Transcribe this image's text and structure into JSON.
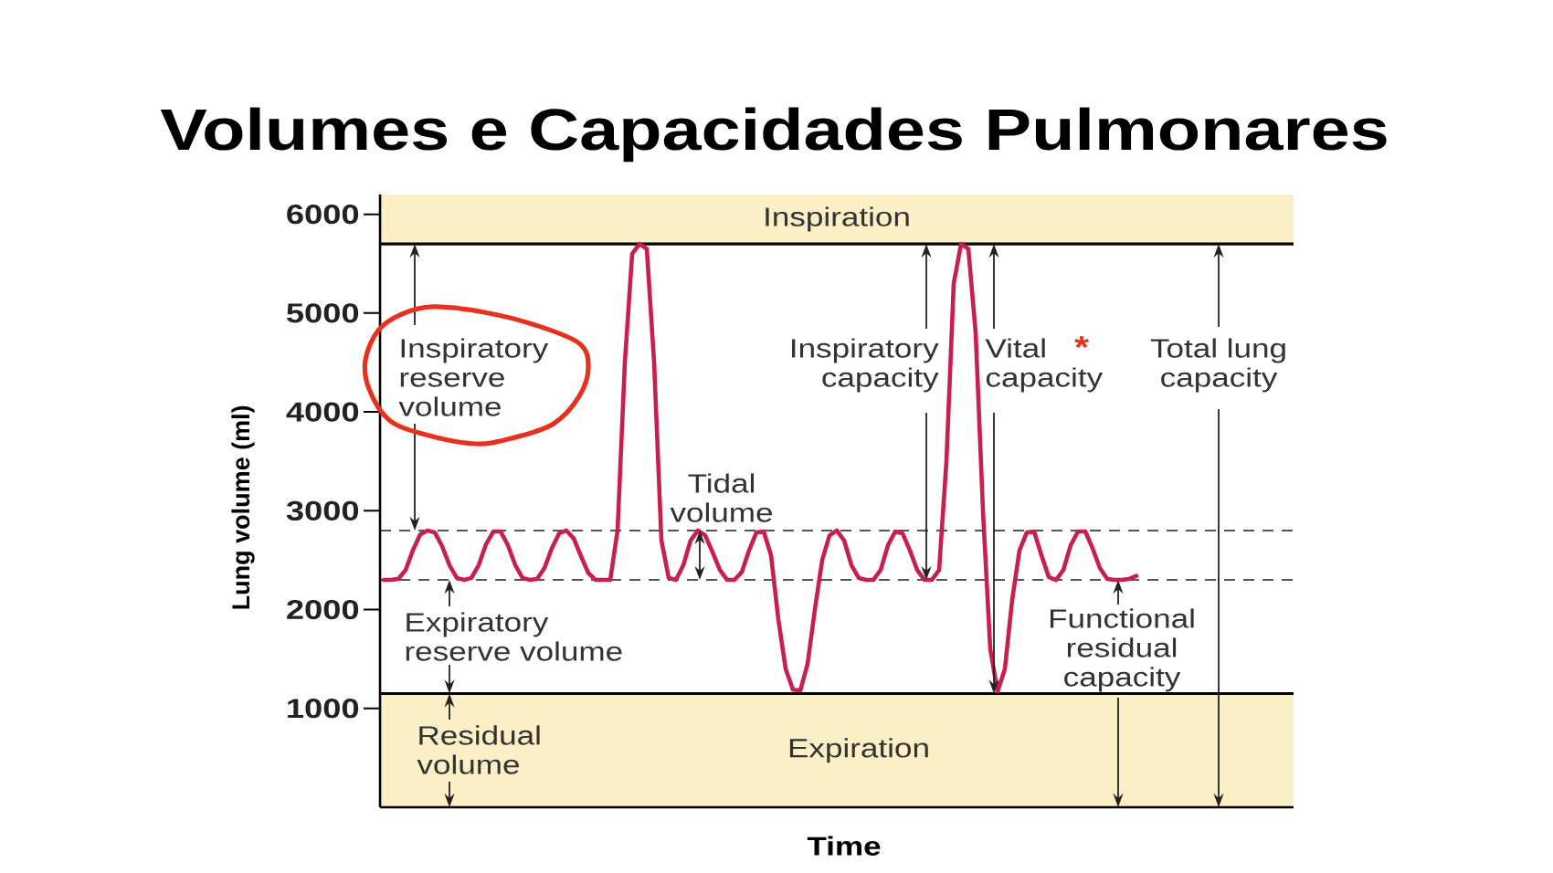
{
  "chart_data": {
    "type": "line",
    "title": "Volumes e Capacidades Pulmonares",
    "xlabel": "Time",
    "ylabel": "Lung volume (ml)",
    "categories": [
      null,
      null,
      null,
      null,
      null,
      null,
      null,
      null,
      null,
      null,
      null,
      null,
      null,
      null,
      null,
      null,
      null,
      null,
      null,
      null,
      null,
      null,
      null,
      null,
      null,
      null,
      null,
      null,
      null,
      null,
      null,
      null,
      null,
      null,
      null,
      null,
      null,
      null,
      null,
      null,
      null,
      null,
      null,
      null,
      null,
      null,
      null,
      null,
      null,
      null,
      null,
      null,
      null,
      null,
      null,
      null,
      null,
      null,
      null,
      null,
      null,
      null,
      null,
      null,
      null,
      null,
      null,
      null,
      null,
      null,
      null,
      null,
      null,
      null,
      null,
      null,
      null,
      null,
      null,
      null,
      null,
      null,
      null,
      null,
      null,
      null,
      null,
      null,
      null,
      null,
      null,
      null,
      null,
      null,
      null,
      null,
      null,
      null,
      null,
      null,
      null,
      null,
      null,
      null
    ],
    "values": [
      2300,
      2300,
      2310,
      2400,
      2600,
      2760,
      2800,
      2780,
      2640,
      2450,
      2320,
      2300,
      2320,
      2450,
      2660,
      2790,
      2790,
      2650,
      2450,
      2320,
      2300,
      2310,
      2420,
      2620,
      2770,
      2800,
      2720,
      2540,
      2370,
      2300,
      2300,
      2300,
      2800,
      4500,
      5600,
      5700,
      5650,
      4500,
      2700,
      2320,
      2300,
      2450,
      2700,
      2800,
      2750,
      2580,
      2400,
      2300,
      2300,
      2380,
      2600,
      2780,
      2790,
      2550,
      1900,
      1400,
      1190,
      1180,
      1450,
      2000,
      2500,
      2750,
      2800,
      2700,
      2450,
      2320,
      2300,
      2300,
      2400,
      2650,
      2790,
      2770,
      2600,
      2400,
      2300,
      2300,
      2400,
      3500,
      5300,
      5700,
      5650,
      4800,
      3000,
      1600,
      1170,
      1400,
      2100,
      2600,
      2780,
      2790,
      2550,
      2330,
      2300,
      2400,
      2650,
      2790,
      2790,
      2620,
      2420,
      2310,
      2300,
      2300,
      2310,
      2340
    ],
    "color": "#c71f4e",
    "ylim": [
      0,
      6200
    ],
    "yticks": [
      1000,
      2000,
      3000,
      4000,
      5000,
      6000
    ],
    "tick_labels": "y",
    "ref_lines": [
      {
        "axis": "y",
        "value": 2800,
        "color": "#555555",
        "line_style": "dashed"
      },
      {
        "axis": "y",
        "value": 2300,
        "color": "#555555",
        "line_style": "dashed"
      },
      {
        "axis": "y",
        "value": 5700,
        "color": "#000000",
        "line_style": "solid"
      },
      {
        "axis": "y",
        "value": 1150,
        "color": "#000000",
        "line_style": "solid"
      }
    ],
    "bands": [
      {
        "axis": "y",
        "from": 5700,
        "to": 6200,
        "label": "Inspiration",
        "color": "#fbefc5"
      },
      {
        "axis": "y",
        "from": 0,
        "to": 1150,
        "label": "Expiration",
        "color": "#fbefc5"
      }
    ],
    "annotations": [
      "Inspiratory reserve volume",
      "Inspiratory capacity",
      "Vital capacity",
      "*",
      "Total lung capacity",
      "Tidal volume",
      "Expiratory reserve volume",
      "Functional residual capacity",
      "Residual volume"
    ]
  }
}
